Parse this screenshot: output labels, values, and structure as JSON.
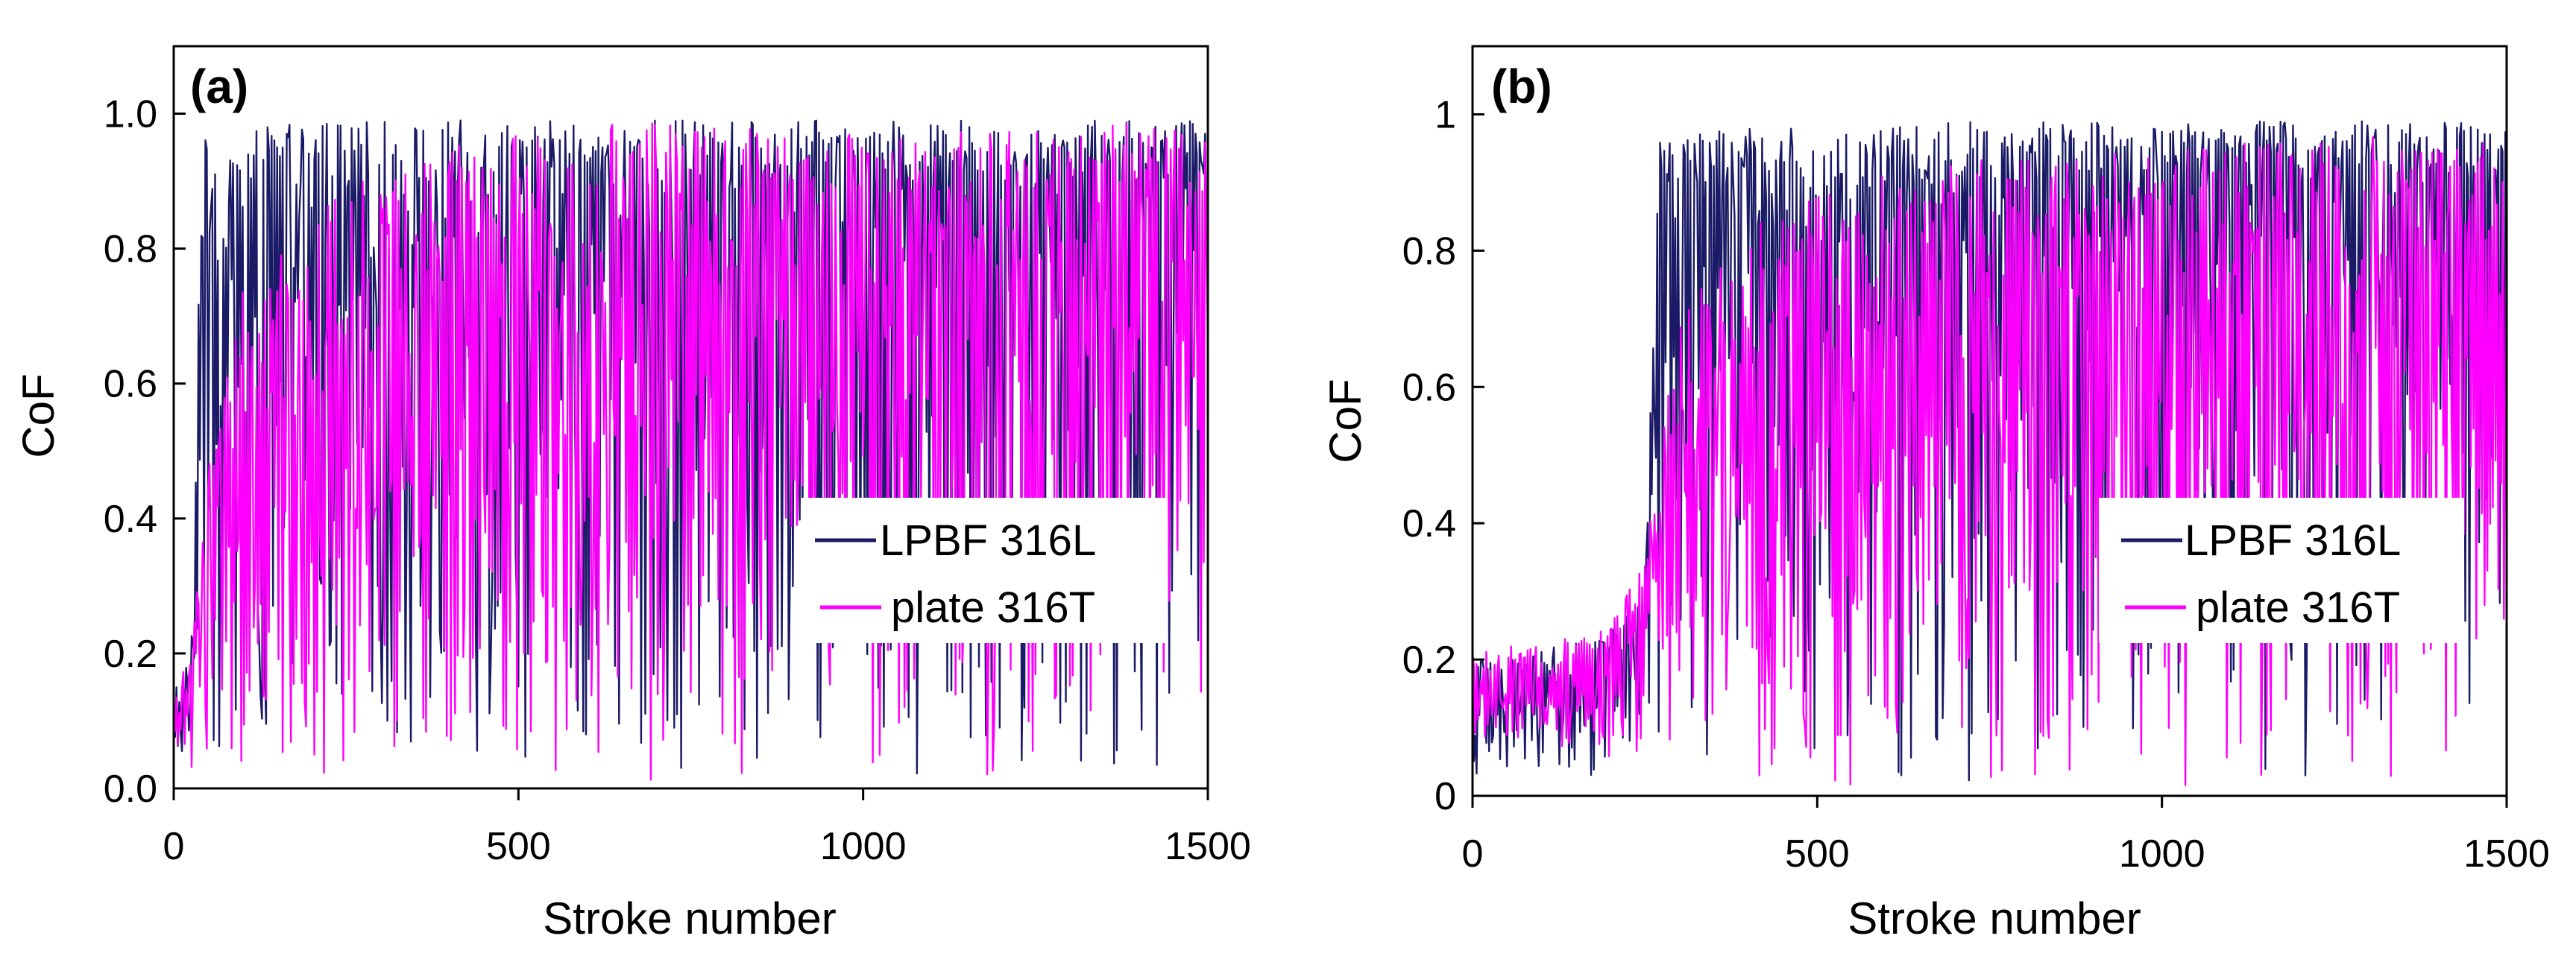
{
  "chart_data": [
    {
      "type": "line",
      "panel_label": "(a)",
      "title": "",
      "xlabel": "Stroke number",
      "ylabel": "CoF",
      "xlim": [
        0,
        1500
      ],
      "ylim": [
        0,
        1.1
      ],
      "xticks": [
        0,
        500,
        1000,
        1500
      ],
      "xtick_labels": [
        "0",
        "500",
        "1000",
        "1500"
      ],
      "yticks": [
        0,
        0.2,
        0.4,
        0.6,
        0.8,
        1.0
      ],
      "ytick_labels": [
        "0.0",
        "0.2",
        "0.4",
        "0.6",
        "0.8",
        "1.0"
      ],
      "grid": false,
      "legend_position": "center-right",
      "series": [
        {
          "name": "LPBF 316L",
          "color": "#1a1a66",
          "x": [
            0,
            25,
            40,
            60,
            100,
            150,
            200,
            250,
            300,
            400,
            500,
            600,
            700,
            800,
            900,
            1000,
            1100,
            1200,
            1300,
            1400,
            1500
          ],
          "upper": [
            0.15,
            0.2,
            0.96,
            0.97,
            0.98,
            0.98,
            0.99,
            0.99,
            0.99,
            0.99,
            0.99,
            0.99,
            0.99,
            0.99,
            0.99,
            0.99,
            0.99,
            0.99,
            0.99,
            0.99,
            0.99
          ],
          "mean": [
            0.08,
            0.12,
            0.75,
            0.75,
            0.76,
            0.76,
            0.76,
            0.75,
            0.75,
            0.76,
            0.78,
            0.8,
            0.8,
            0.82,
            0.82,
            0.83,
            0.85,
            0.85,
            0.86,
            0.86,
            0.87
          ],
          "lower": [
            0.05,
            0.05,
            0.03,
            0.02,
            0.02,
            0.02,
            0.02,
            0.02,
            0.02,
            0.02,
            0.02,
            0.02,
            0.02,
            0.02,
            0.02,
            0.02,
            0.02,
            0.02,
            0.02,
            0.02,
            0.02
          ]
        },
        {
          "name": "plate 316T",
          "color": "#ff00ff",
          "x": [
            0,
            25,
            50,
            75,
            100,
            150,
            200,
            250,
            300,
            400,
            500,
            600,
            700,
            800,
            900,
            1000,
            1100,
            1200,
            1300,
            1400,
            1500
          ],
          "upper": [
            0.15,
            0.2,
            0.5,
            0.6,
            0.75,
            0.8,
            0.85,
            0.9,
            0.9,
            0.95,
            0.97,
            0.98,
            0.99,
            1.0,
            0.99,
            0.98,
            0.98,
            0.98,
            0.98,
            0.99,
            0.99
          ],
          "mean": [
            0.08,
            0.15,
            0.35,
            0.38,
            0.4,
            0.42,
            0.45,
            0.45,
            0.45,
            0.5,
            0.55,
            0.62,
            0.68,
            0.72,
            0.7,
            0.7,
            0.7,
            0.7,
            0.72,
            0.74,
            0.75
          ],
          "lower": [
            0.0,
            0.0,
            0.01,
            0.01,
            0.01,
            0.01,
            0.01,
            0.01,
            0.01,
            0.01,
            0.01,
            0.01,
            0.01,
            0.01,
            0.01,
            0.01,
            0.01,
            0.01,
            0.01,
            0.01,
            0.01
          ]
        }
      ]
    },
    {
      "type": "line",
      "panel_label": "(b)",
      "title": "",
      "xlabel": "Stroke number",
      "ylabel": "CoF",
      "xlim": [
        0,
        1500
      ],
      "ylim": [
        0,
        1.1
      ],
      "xticks": [
        0,
        500,
        1000,
        1500
      ],
      "xtick_labels": [
        "0",
        "500",
        "1000",
        "1500"
      ],
      "yticks": [
        0,
        0.2,
        0.4,
        0.6,
        0.8,
        1.0
      ],
      "ytick_labels": [
        "0",
        "0.2",
        "0.4",
        "0.6",
        "0.8",
        "1"
      ],
      "grid": false,
      "legend_position": "center-right",
      "series": [
        {
          "name": "LPBF 316L",
          "color": "#1a1a66",
          "x": [
            0,
            100,
            200,
            250,
            270,
            300,
            400,
            500,
            600,
            700,
            800,
            900,
            1000,
            1100,
            1200,
            1300,
            1400,
            1500
          ],
          "upper": [
            0.2,
            0.22,
            0.25,
            0.3,
            0.96,
            0.97,
            0.98,
            0.98,
            0.98,
            0.99,
            0.99,
            0.99,
            0.99,
            0.99,
            0.99,
            0.99,
            0.99,
            0.99
          ],
          "mean": [
            0.15,
            0.15,
            0.18,
            0.22,
            0.8,
            0.82,
            0.84,
            0.85,
            0.85,
            0.86,
            0.86,
            0.87,
            0.87,
            0.87,
            0.88,
            0.88,
            0.88,
            0.88
          ],
          "lower": [
            0.02,
            0.02,
            0.02,
            0.02,
            0.02,
            0.02,
            0.02,
            0.02,
            0.02,
            0.02,
            0.02,
            0.02,
            0.02,
            0.02,
            0.02,
            0.02,
            0.02,
            0.02
          ]
        },
        {
          "name": "plate 316T",
          "color": "#ff00ff",
          "x": [
            0,
            100,
            200,
            250,
            300,
            400,
            500,
            600,
            700,
            800,
            900,
            1000,
            1100,
            1200,
            1300,
            1400,
            1500
          ],
          "upper": [
            0.22,
            0.22,
            0.25,
            0.35,
            0.7,
            0.85,
            0.9,
            0.92,
            0.93,
            0.94,
            0.95,
            0.95,
            0.96,
            0.96,
            0.97,
            0.97,
            0.97
          ],
          "mean": [
            0.15,
            0.15,
            0.18,
            0.3,
            0.45,
            0.5,
            0.52,
            0.55,
            0.58,
            0.6,
            0.62,
            0.63,
            0.64,
            0.65,
            0.66,
            0.67,
            0.68
          ],
          "lower": [
            0.08,
            0.08,
            0.05,
            0.03,
            0.02,
            0.02,
            0.02,
            0.01,
            0.01,
            0.01,
            0.01,
            0.01,
            0.01,
            0.01,
            0.01,
            0.01,
            0.01
          ]
        }
      ]
    }
  ]
}
